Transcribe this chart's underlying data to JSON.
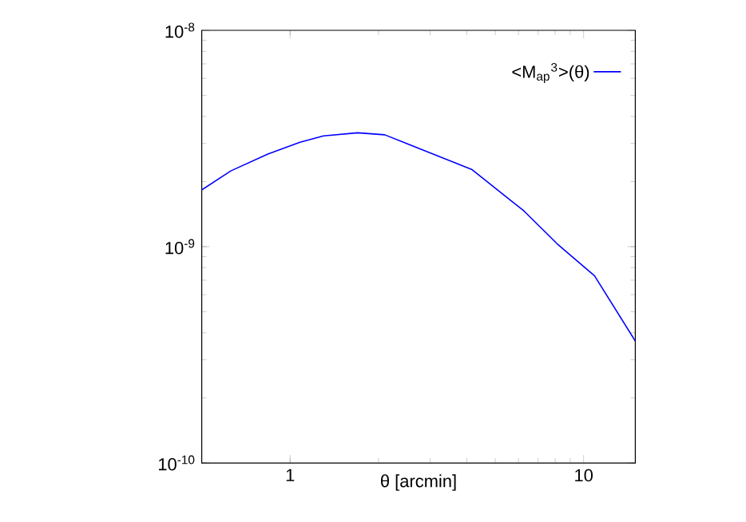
{
  "chart_data": {
    "type": "line",
    "xlabel": "θ [arcmin]",
    "log": "xy",
    "x": [
      0.5,
      0.628,
      0.84,
      1.08,
      1.3,
      1.7,
      2.1,
      4.17,
      6.27,
      8.13,
      10.9,
      15
    ],
    "series": [
      {
        "name": "<M$_{ap}$$^{3}$>(θ)",
        "color": "#0000ff",
        "values": [
          1.83e-09,
          2.24e-09,
          2.68e-09,
          3.04e-09,
          3.25e-09,
          3.36e-09,
          3.29e-09,
          2.27e-09,
          1.46e-09,
          1.03e-09,
          7.33e-10,
          3.66e-10
        ]
      }
    ],
    "xlim": [
      0.5,
      15
    ],
    "ylim": [
      1e-10,
      1e-08
    ],
    "xticks": [
      1,
      10
    ],
    "yticks": [
      {
        "value": 1e-10,
        "label": "10$^{-10}$"
      },
      {
        "value": 1e-09,
        "label": "10$^{-9}$"
      },
      {
        "value": 1e-08,
        "label": "10$^{-8}$"
      }
    ],
    "grid": false,
    "legend": "top right",
    "marker": "none",
    "line_style": "solid"
  }
}
